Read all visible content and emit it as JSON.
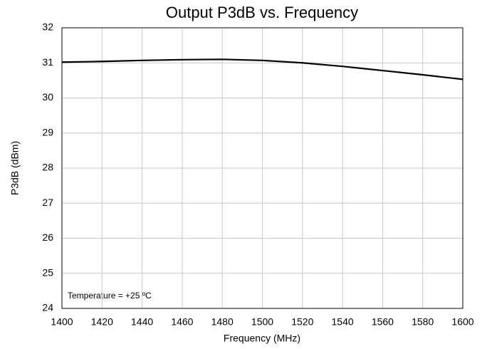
{
  "chart_data": {
    "type": "line",
    "title": "Output P3dB vs. Frequency",
    "x_label": "Frequency (MHz)",
    "y_label": "P3dB (dBm)",
    "annotation": "Temperature = +25 ºC",
    "x": [
      1400,
      1420,
      1440,
      1460,
      1480,
      1500,
      1520,
      1540,
      1560,
      1580,
      1600
    ],
    "values": [
      31.02,
      31.04,
      31.07,
      31.09,
      31.1,
      31.07,
      31.0,
      30.9,
      30.78,
      30.66,
      30.53
    ],
    "color": "#000000",
    "xlim": [
      1400,
      1600
    ],
    "xticks": [
      1400,
      1420,
      1440,
      1460,
      1480,
      1500,
      1520,
      1540,
      1560,
      1580,
      1600
    ],
    "ylim": [
      24,
      32
    ],
    "yticks": [
      24,
      25,
      26,
      27,
      28,
      29,
      30,
      31,
      32
    ],
    "grid": true
  }
}
